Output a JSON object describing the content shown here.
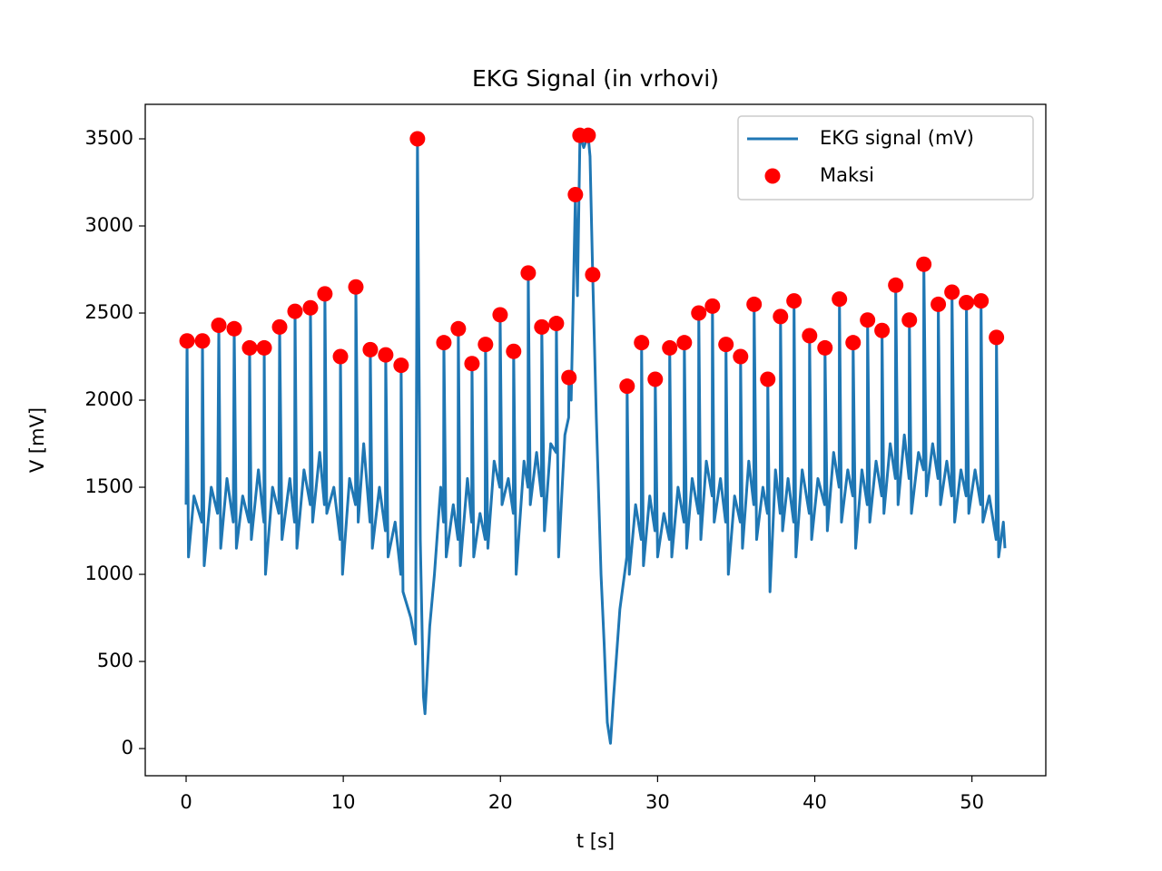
{
  "chart_data": {
    "type": "line",
    "title": "EKG Signal (in vrhovi)",
    "xlabel": "t [s]",
    "ylabel": "V [mV]",
    "xlim": [
      -2.6,
      54.7
    ],
    "ylim": [
      -156,
      3698
    ],
    "xticks": [
      0,
      10,
      20,
      30,
      40,
      50
    ],
    "yticks": [
      0,
      500,
      1000,
      1500,
      2000,
      2500,
      3000,
      3500
    ],
    "grid": false,
    "legend": "upper right",
    "series": [
      {
        "name": "EKG signal (mV)",
        "color": "#1f77b4",
        "type": "line",
        "x": [
          0.0,
          0.06,
          0.15,
          0.5,
          1.0,
          1.04,
          1.15,
          1.6,
          2.0,
          2.08,
          2.2,
          2.6,
          3.0,
          3.06,
          3.2,
          3.6,
          4.0,
          4.04,
          4.15,
          4.6,
          4.95,
          4.97,
          5.05,
          5.5,
          5.9,
          5.95,
          6.1,
          6.6,
          6.9,
          6.93,
          7.05,
          7.5,
          7.9,
          7.91,
          8.05,
          8.5,
          8.8,
          8.83,
          8.95,
          9.4,
          9.8,
          9.82,
          9.95,
          10.4,
          10.78,
          10.8,
          10.95,
          11.3,
          11.7,
          11.72,
          11.85,
          12.3,
          12.68,
          12.7,
          12.85,
          13.3,
          13.66,
          13.68,
          13.8,
          14.3,
          14.6,
          14.72,
          14.9,
          15.1,
          15.2,
          15.5,
          15.8,
          16.2,
          16.38,
          16.4,
          16.55,
          17.0,
          17.3,
          17.32,
          17.45,
          17.9,
          18.17,
          18.19,
          18.3,
          18.7,
          19.03,
          19.05,
          19.2,
          19.6,
          19.96,
          19.98,
          20.1,
          20.5,
          20.82,
          20.84,
          21.0,
          21.5,
          21.75,
          21.77,
          21.9,
          22.3,
          22.61,
          22.63,
          22.8,
          23.2,
          23.54,
          23.56,
          23.7,
          24.1,
          24.34,
          24.36,
          24.5,
          24.77,
          24.9,
          25.06,
          25.3,
          25.58,
          25.7,
          25.87,
          26.1,
          26.4,
          26.6,
          26.8,
          27.0,
          27.2,
          27.4,
          27.6,
          28.04,
          28.06,
          28.2,
          28.6,
          28.96,
          28.98,
          29.1,
          29.5,
          29.83,
          29.85,
          30.0,
          30.4,
          30.75,
          30.77,
          30.9,
          31.3,
          31.68,
          31.7,
          31.85,
          32.2,
          32.6,
          32.62,
          32.75,
          33.1,
          33.47,
          33.49,
          33.6,
          34.0,
          34.33,
          34.35,
          34.5,
          34.9,
          35.26,
          35.28,
          35.4,
          35.8,
          36.12,
          36.14,
          36.3,
          36.7,
          36.99,
          37.01,
          37.15,
          37.5,
          37.8,
          37.82,
          37.95,
          38.3,
          38.66,
          38.68,
          38.8,
          39.2,
          39.65,
          39.67,
          39.8,
          40.2,
          40.63,
          40.65,
          40.8,
          41.2,
          41.55,
          41.57,
          41.7,
          42.1,
          42.42,
          42.44,
          42.6,
          43.0,
          43.34,
          43.36,
          43.5,
          43.9,
          44.26,
          44.28,
          44.4,
          44.8,
          45.13,
          45.15,
          45.3,
          45.7,
          46.0,
          46.02,
          46.15,
          46.6,
          46.92,
          46.94,
          47.1,
          47.5,
          47.84,
          47.86,
          48.0,
          48.4,
          48.71,
          48.73,
          48.9,
          49.3,
          49.63,
          49.65,
          49.8,
          50.2,
          50.56,
          50.58,
          50.7,
          51.1,
          51.54,
          51.56,
          51.7,
          52.0,
          52.1
        ],
        "values": [
          1400,
          2340,
          1100,
          1450,
          1300,
          2340,
          1050,
          1500,
          1350,
          2430,
          1150,
          1550,
          1300,
          2410,
          1150,
          1450,
          1300,
          2300,
          1200,
          1600,
          1300,
          2300,
          1000,
          1500,
          1350,
          2420,
          1200,
          1550,
          1300,
          2510,
          1150,
          1600,
          1400,
          2530,
          1300,
          1700,
          1400,
          2610,
          1350,
          1500,
          1200,
          2250,
          1000,
          1550,
          1400,
          2650,
          1300,
          1750,
          1300,
          2290,
          1150,
          1500,
          1250,
          2260,
          1100,
          1300,
          1000,
          2200,
          900,
          750,
          600,
          3500,
          1200,
          300,
          200,
          700,
          1000,
          1500,
          1300,
          2330,
          1100,
          1400,
          1200,
          2410,
          1050,
          1550,
          1300,
          2210,
          1100,
          1350,
          1200,
          2320,
          1150,
          1650,
          1500,
          2490,
          1400,
          1550,
          1350,
          2280,
          1000,
          1650,
          1500,
          2730,
          1400,
          1700,
          1450,
          2420,
          1250,
          1750,
          1700,
          2440,
          1100,
          1800,
          1900,
          2130,
          2000,
          3180,
          2600,
          3520,
          3450,
          3520,
          3400,
          2720,
          1900,
          1000,
          600,
          150,
          30,
          300,
          550,
          800,
          1100,
          2080,
          1000,
          1400,
          1200,
          2330,
          1050,
          1450,
          1250,
          2120,
          1100,
          1350,
          1200,
          2300,
          1100,
          1500,
          1300,
          2330,
          1150,
          1550,
          1350,
          2500,
          1200,
          1650,
          1450,
          2540,
          1300,
          1550,
          1300,
          2320,
          1000,
          1450,
          1300,
          2250,
          1150,
          1650,
          1400,
          2550,
          1200,
          1500,
          1350,
          2120,
          900,
          1600,
          1350,
          2480,
          1250,
          1550,
          1300,
          2570,
          1100,
          1600,
          1350,
          2370,
          1200,
          1550,
          1400,
          2300,
          1250,
          1700,
          1500,
          2580,
          1300,
          1600,
          1450,
          2330,
          1150,
          1600,
          1400,
          2460,
          1300,
          1650,
          1450,
          2400,
          1350,
          1750,
          1550,
          2660,
          1400,
          1800,
          1550,
          2460,
          1350,
          1700,
          1600,
          2780,
          1450,
          1750,
          1550,
          2550,
          1400,
          1650,
          1450,
          2620,
          1300,
          1600,
          1450,
          2560,
          1350,
          1600,
          1400,
          2570,
          1300,
          1450,
          1200,
          2360,
          1100,
          1300,
          1150
        ]
      },
      {
        "name": "Maksi",
        "color": "red",
        "type": "scatter",
        "x": [
          0.06,
          1.04,
          2.08,
          3.06,
          4.04,
          4.97,
          5.95,
          6.93,
          7.91,
          8.83,
          9.82,
          10.8,
          11.72,
          12.7,
          13.68,
          14.72,
          16.4,
          17.32,
          18.19,
          19.05,
          19.98,
          20.84,
          21.77,
          22.63,
          23.56,
          24.36,
          24.77,
          25.06,
          25.58,
          25.87,
          28.06,
          28.98,
          29.85,
          30.77,
          31.7,
          32.62,
          33.49,
          34.35,
          35.28,
          36.14,
          37.01,
          37.82,
          38.68,
          39.67,
          40.65,
          41.57,
          42.44,
          43.36,
          44.28,
          45.15,
          46.02,
          46.94,
          47.86,
          48.73,
          49.65,
          50.58,
          51.56
        ],
        "values": [
          2340,
          2340,
          2430,
          2410,
          2300,
          2300,
          2420,
          2510,
          2530,
          2610,
          2250,
          2650,
          2290,
          2260,
          2200,
          3500,
          2330,
          2410,
          2210,
          2320,
          2490,
          2280,
          2730,
          2420,
          2440,
          2130,
          3180,
          3520,
          3520,
          2720,
          2080,
          2330,
          2120,
          2300,
          2330,
          2500,
          2540,
          2320,
          2250,
          2550,
          2120,
          2480,
          2570,
          2370,
          2300,
          2580,
          2330,
          2460,
          2400,
          2660,
          2460,
          2780,
          2550,
          2620,
          2560,
          2570,
          2360
        ]
      }
    ]
  }
}
